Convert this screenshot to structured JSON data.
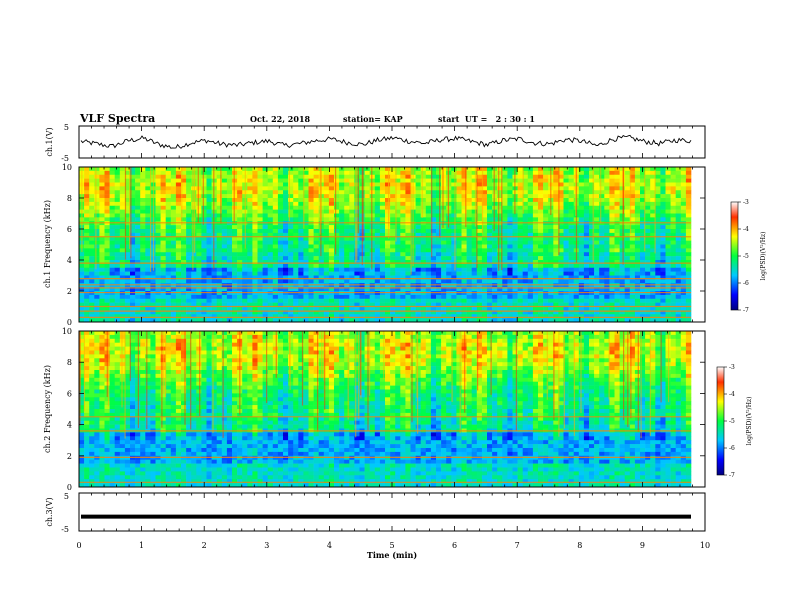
{
  "header": {
    "title": "VLF Spectra",
    "date": "Oct. 22, 2018",
    "station": "station= KAP",
    "start": "start  UT =   2 : 30 : 1"
  },
  "chart_data": [
    {
      "type": "line",
      "panel": "ch1-waveform",
      "ylabel": "ch.1(V)",
      "ylim": [
        -5,
        5
      ],
      "yticks": [
        "5",
        "-5"
      ],
      "xlim": [
        0,
        10
      ],
      "trace_color": "#000000",
      "series": [
        {
          "values": [
            0.2,
            -0.6,
            -1.4,
            0.4,
            1.2,
            -0.8,
            -1.8,
            -0.3,
            0.5,
            -0.7,
            -1.0,
            -0.2,
            0.3,
            -1.1,
            -0.5,
            0.4,
            0.9,
            -0.1,
            -0.8,
            0.6,
            1.3,
            0.2,
            -0.4,
            0.7,
            1.1,
            0.1,
            -0.9,
            0.5,
            1.0,
            -0.3,
            -0.6,
            0.8,
            0.3,
            -1.2,
            0.9,
            1.4,
            0.2,
            -0.5,
            0.6,
            0.4
          ]
        }
      ]
    },
    {
      "type": "heatmap",
      "panel": "ch1-spectrogram",
      "ylabel": "ch.1  Frequency (kHz)",
      "xlim": [
        0,
        10
      ],
      "ylim": [
        0,
        10
      ],
      "yticks": [
        "0",
        "2",
        "4",
        "6",
        "8",
        "10"
      ],
      "colorbar": {
        "label": "log(PSD)(V²/Hz)",
        "range": [
          -7,
          -3
        ],
        "ticks": [
          "-3",
          "-4",
          "-5",
          "-6",
          "-7"
        ]
      },
      "horizontal_lines_khz": [
        0.3,
        0.7,
        1.0,
        1.9,
        2.2,
        2.4,
        2.8,
        3.8,
        5.5,
        6.4
      ]
    },
    {
      "type": "heatmap",
      "panel": "ch2-spectrogram",
      "ylabel": "ch.2  Frequency (kHz)",
      "xlim": [
        0,
        10
      ],
      "ylim": [
        0,
        10
      ],
      "yticks": [
        "0",
        "2",
        "4",
        "6",
        "8",
        "10"
      ],
      "colorbar": {
        "label": "log(PSD)(V²/Hz)",
        "range": [
          -7,
          -3
        ],
        "ticks": [
          "-3",
          "-4",
          "-5",
          "-6",
          "-7"
        ]
      },
      "horizontal_lines_khz": [
        0.3,
        1.9,
        3.6,
        4.5
      ]
    },
    {
      "type": "line",
      "panel": "ch3-waveform",
      "ylabel": "ch.3(V)",
      "ylim": [
        -5,
        5
      ],
      "yticks": [
        "5",
        "-5"
      ],
      "xlim": [
        0,
        10
      ],
      "xlabel": "Time  (min)",
      "xticks": [
        "0",
        "1",
        "2",
        "3",
        "4",
        "5",
        "6",
        "7",
        "8",
        "9",
        "10"
      ],
      "trace_color": "#000000",
      "series": [
        {
          "values": [
            -1.2,
            -1.2
          ]
        }
      ]
    }
  ]
}
